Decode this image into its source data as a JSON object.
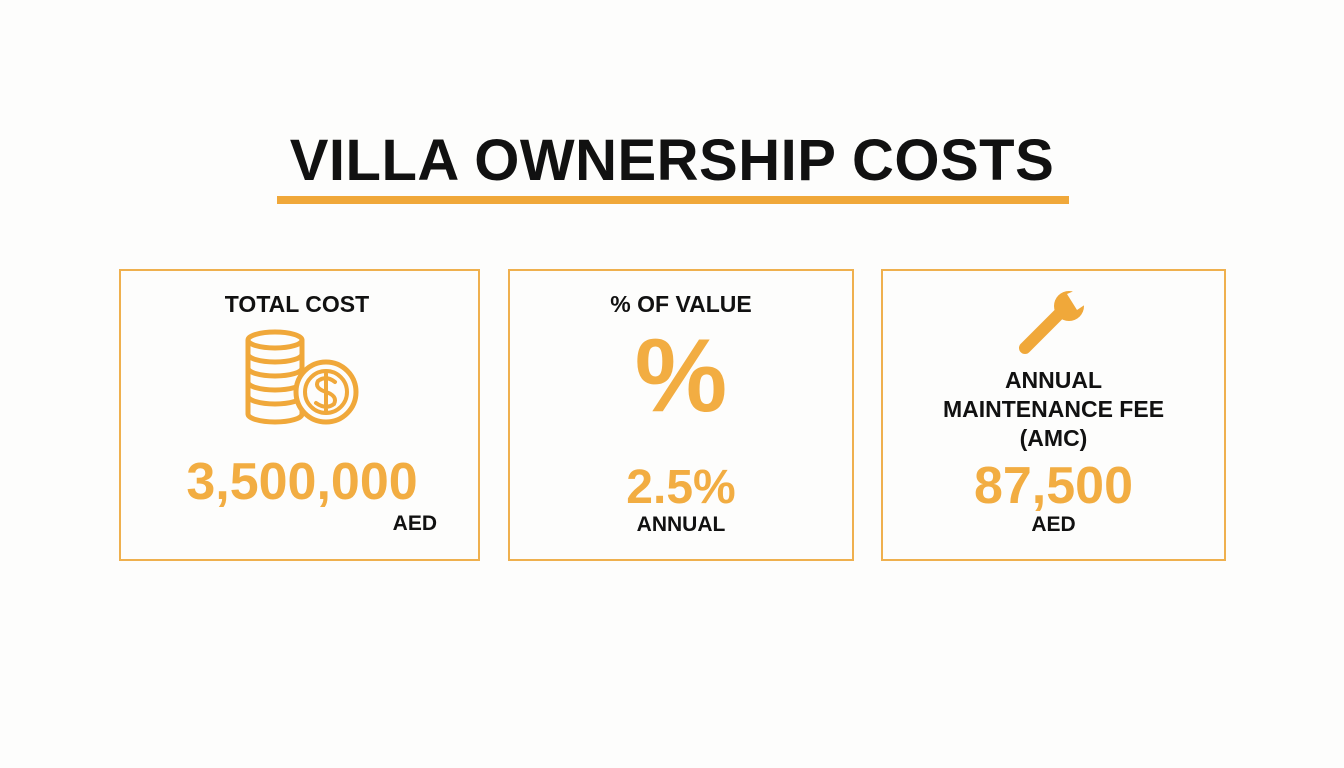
{
  "header": {
    "title": "VILLA OWNERSHIP COSTS"
  },
  "cards": [
    {
      "label": [
        "TOTAL COST"
      ],
      "value": "3,500,000",
      "unit": "AED"
    },
    {
      "label": [
        "% OF VALUE"
      ],
      "icon_text": "%",
      "value": "2.5%",
      "unit": "ANNUAL"
    },
    {
      "label": [
        "ANNUAL",
        "MAINTENANCE FEE",
        "(AMC)"
      ],
      "value": "87,500",
      "unit": "AED"
    }
  ]
}
